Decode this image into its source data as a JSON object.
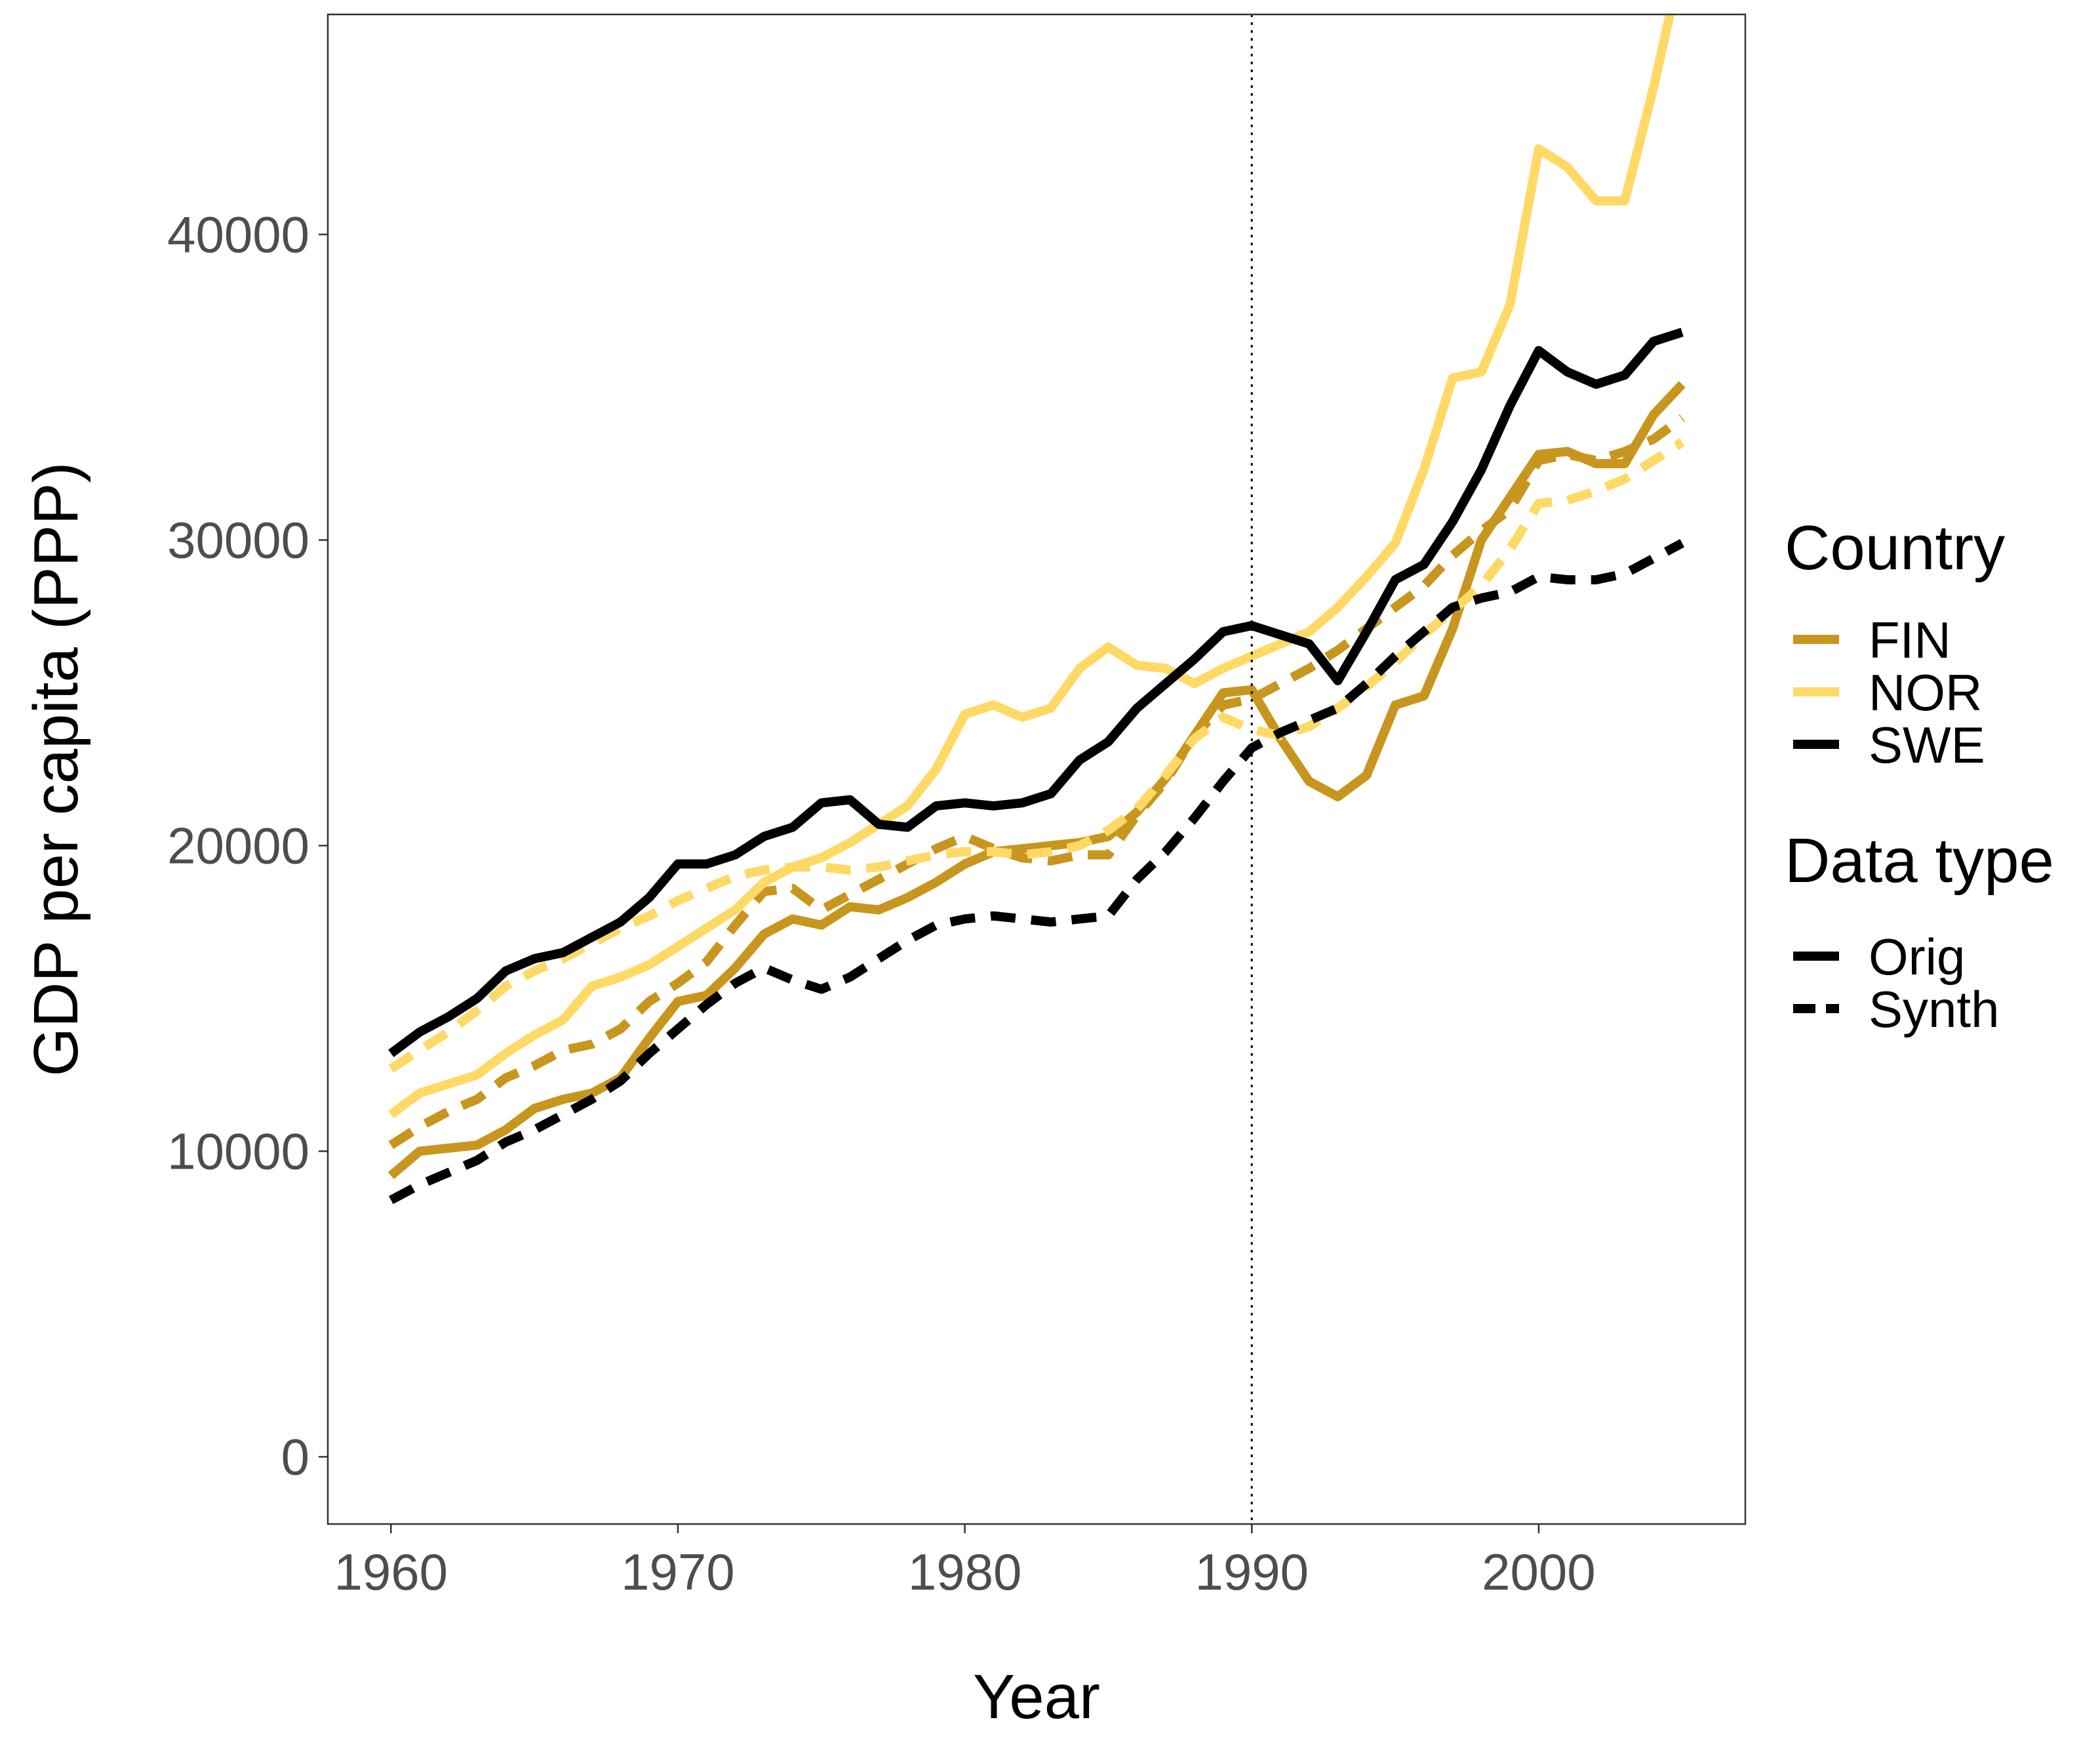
{
  "chart_data": {
    "type": "line",
    "xlabel": "Year",
    "ylabel": "GDP per capita (PPP)",
    "xlim": [
      1957.8,
      2007.2
    ],
    "ylim": [
      -2200,
      47200
    ],
    "x_ticks": [
      1960,
      1970,
      1980,
      1990,
      2000
    ],
    "x_tick_labels": [
      "1960",
      "1970",
      "1980",
      "1990",
      "2000"
    ],
    "y_ticks": [
      0,
      10000,
      20000,
      30000,
      40000
    ],
    "y_tick_labels": [
      "0",
      "10000",
      "20000",
      "30000",
      "40000"
    ],
    "grid": false,
    "vline_x": 1990,
    "legend_position": "right",
    "legend": {
      "country_title": "Country",
      "country_entries": [
        {
          "label": "FIN",
          "color": "#C8961E"
        },
        {
          "label": "NOR",
          "color": "#FFD966"
        },
        {
          "label": "SWE",
          "color": "#000000"
        }
      ],
      "datatype_title": "Data type",
      "datatype_entries": [
        {
          "label": "Orig",
          "dash": "solid"
        },
        {
          "label": "Synth",
          "dash": "dashed"
        }
      ]
    },
    "x": [
      1960,
      1961,
      1962,
      1963,
      1964,
      1965,
      1966,
      1967,
      1968,
      1969,
      1970,
      1971,
      1972,
      1973,
      1974,
      1975,
      1976,
      1977,
      1978,
      1979,
      1980,
      1981,
      1982,
      1983,
      1984,
      1985,
      1986,
      1987,
      1988,
      1989,
      1990,
      1991,
      1992,
      1993,
      1994,
      1995,
      1996,
      1997,
      1998,
      1999,
      2000,
      2001,
      2002,
      2003,
      2004,
      2005
    ],
    "series": [
      {
        "country": "FIN",
        "type": "Orig",
        "color": "#C8961E",
        "dash": "solid",
        "values": [
          9200,
          10000,
          10100,
          10200,
          10700,
          11400,
          11700,
          11900,
          12400,
          13700,
          14900,
          15100,
          16000,
          17100,
          17600,
          17400,
          18000,
          17900,
          18300,
          18800,
          19400,
          19800,
          19900,
          20000,
          20100,
          20300,
          21100,
          22200,
          23600,
          25000,
          25100,
          23500,
          22100,
          21600,
          22300,
          24600,
          24900,
          27100,
          30000,
          31400,
          32800,
          32900,
          32500,
          32500,
          34100,
          35100
        ]
      },
      {
        "country": "FIN",
        "type": "Synth",
        "color": "#C8961E",
        "dash": "dashed",
        "values": [
          10200,
          10800,
          11300,
          11700,
          12400,
          12800,
          13300,
          13500,
          14000,
          14900,
          15500,
          16200,
          17400,
          18500,
          18600,
          17900,
          18400,
          18900,
          19400,
          19900,
          20300,
          19900,
          19600,
          19500,
          19700,
          19700,
          21000,
          22100,
          23600,
          24600,
          24800,
          25300,
          25800,
          26400,
          27100,
          27800,
          28500,
          29500,
          30300,
          31000,
          32600,
          32800,
          32600,
          32900,
          33300,
          34000
        ]
      },
      {
        "country": "NOR",
        "type": "Orig",
        "color": "#FFD966",
        "dash": "solid",
        "values": [
          11200,
          11900,
          12200,
          12500,
          13200,
          13800,
          14300,
          15400,
          15700,
          16100,
          16700,
          17300,
          17900,
          18800,
          19300,
          19600,
          20100,
          20700,
          21300,
          22500,
          24300,
          24600,
          24200,
          24500,
          25800,
          26500,
          25900,
          25800,
          25300,
          25800,
          26200,
          26600,
          27000,
          27800,
          28800,
          29900,
          32300,
          35300,
          35500,
          37700,
          42800,
          42200,
          41100,
          41100,
          44800,
          49000
        ]
      },
      {
        "country": "NOR",
        "type": "Synth",
        "color": "#FFD966",
        "dash": "dashed",
        "values": [
          12700,
          13300,
          13900,
          14600,
          15400,
          15900,
          16300,
          16800,
          17300,
          17700,
          18200,
          18600,
          19000,
          19200,
          19300,
          19300,
          19200,
          19300,
          19500,
          19700,
          19800,
          19800,
          19700,
          19800,
          20000,
          20500,
          21200,
          22300,
          23500,
          24200,
          23800,
          23600,
          23900,
          24500,
          25200,
          26000,
          26900,
          27700,
          28500,
          29700,
          31200,
          31300,
          31600,
          32000,
          32600,
          33200
        ]
      },
      {
        "country": "SWE",
        "type": "Orig",
        "color": "#000000",
        "dash": "solid",
        "values": [
          13200,
          13900,
          14400,
          15000,
          15900,
          16300,
          16500,
          17000,
          17500,
          18300,
          19400,
          19400,
          19700,
          20300,
          20600,
          21400,
          21500,
          20700,
          20600,
          21300,
          21400,
          21300,
          21400,
          21700,
          22800,
          23400,
          24500,
          25300,
          26100,
          27000,
          27200,
          26900,
          26600,
          25400,
          27000,
          28700,
          29200,
          30600,
          32300,
          34400,
          36200,
          35500,
          35100,
          35400,
          36500,
          36800
        ]
      },
      {
        "country": "SWE",
        "type": "Synth",
        "color": "#000000",
        "dash": "dashed",
        "values": [
          8400,
          8900,
          9300,
          9700,
          10300,
          10700,
          11200,
          11700,
          12300,
          13200,
          14000,
          14800,
          15500,
          16000,
          15600,
          15300,
          15700,
          16300,
          16900,
          17400,
          17600,
          17700,
          17600,
          17500,
          17600,
          17700,
          18900,
          19800,
          20900,
          22100,
          23200,
          23700,
          24100,
          24500,
          25300,
          26200,
          27000,
          27800,
          28100,
          28300,
          28800,
          28700,
          28700,
          28900,
          29400,
          29900
        ]
      }
    ]
  }
}
